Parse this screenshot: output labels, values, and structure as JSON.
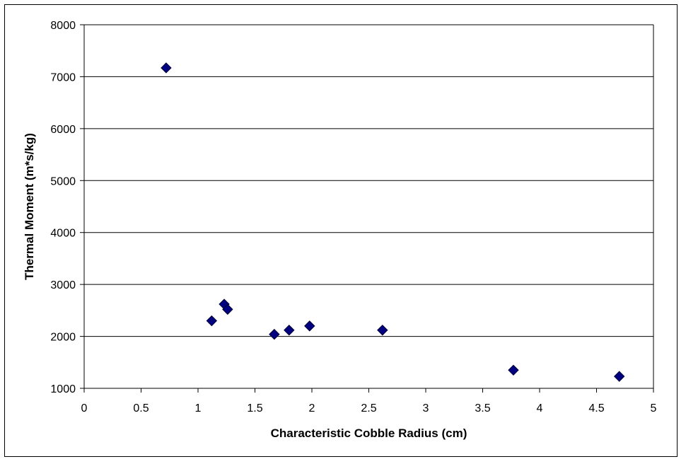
{
  "chart_data": {
    "type": "scatter",
    "title": "",
    "xlabel": "Characteristic Cobble Radius (cm)",
    "ylabel": "Thermal Moment (m*s/kg)",
    "xlim": [
      0,
      5
    ],
    "ylim": [
      1000,
      8000
    ],
    "x_ticks": [
      "0",
      "0.5",
      "1",
      "1.5",
      "2",
      "2.5",
      "3",
      "3.5",
      "4",
      "4.5",
      "5"
    ],
    "y_ticks": [
      "1000",
      "2000",
      "3000",
      "4000",
      "5000",
      "6000",
      "7000",
      "8000"
    ],
    "grid": "horizontal",
    "legend": "none",
    "marker": "diamond",
    "marker_color": "#000080",
    "points": [
      {
        "x": 0.72,
        "y": 7170
      },
      {
        "x": 1.12,
        "y": 2300
      },
      {
        "x": 1.23,
        "y": 2620
      },
      {
        "x": 1.26,
        "y": 2520
      },
      {
        "x": 1.67,
        "y": 2040
      },
      {
        "x": 1.8,
        "y": 2120
      },
      {
        "x": 1.98,
        "y": 2200
      },
      {
        "x": 2.62,
        "y": 2120
      },
      {
        "x": 3.77,
        "y": 1350
      },
      {
        "x": 4.7,
        "y": 1230
      }
    ]
  }
}
